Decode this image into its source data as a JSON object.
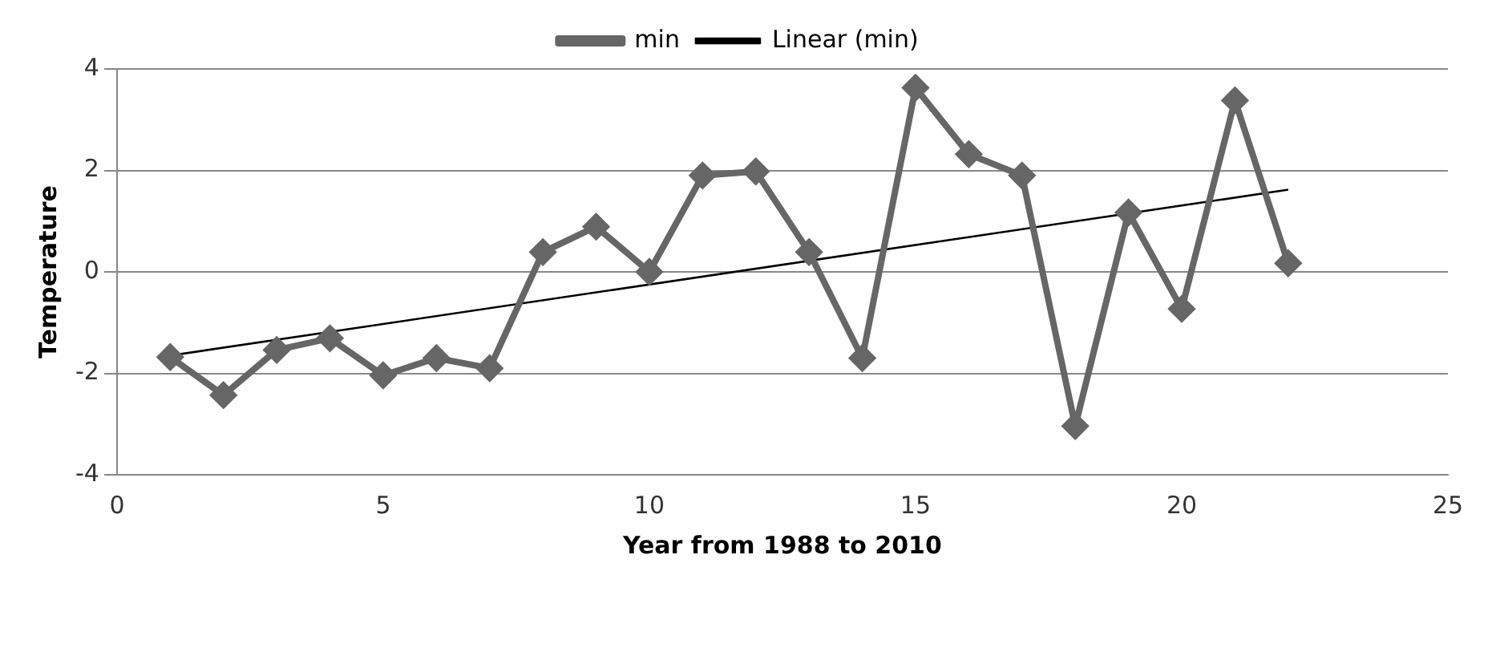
{
  "chart_data": {
    "type": "line",
    "xlabel": "Year from 1988 to 2010",
    "ylabel": "Temperature",
    "xlim": [
      0,
      25
    ],
    "xticks": [
      0,
      5,
      10,
      15,
      20,
      25
    ],
    "ylim": [
      -4,
      4
    ],
    "yticks": [
      -4,
      -2,
      0,
      2,
      4
    ],
    "grid": "y",
    "legend": "top",
    "series": [
      {
        "name": "min",
        "color": "#666666",
        "marker": "diamond",
        "x": [
          1,
          2,
          3,
          4,
          5,
          6,
          7,
          8,
          9,
          10,
          11,
          12,
          13,
          14,
          15,
          16,
          17,
          18,
          19,
          20,
          21,
          22
        ],
        "values": [
          -1.68,
          -2.43,
          -1.54,
          -1.31,
          -2.04,
          -1.7,
          -1.9,
          0.39,
          0.89,
          0,
          1.9,
          1.98,
          0.39,
          -1.7,
          3.63,
          2.32,
          1.9,
          -3.04,
          1.17,
          -0.73,
          3.38,
          0.17
        ]
      },
      {
        "name": "Linear (min)",
        "color": "#000000",
        "marker": "none",
        "x": [
          1,
          22
        ],
        "values": [
          -1.65,
          1.62
        ]
      }
    ]
  }
}
